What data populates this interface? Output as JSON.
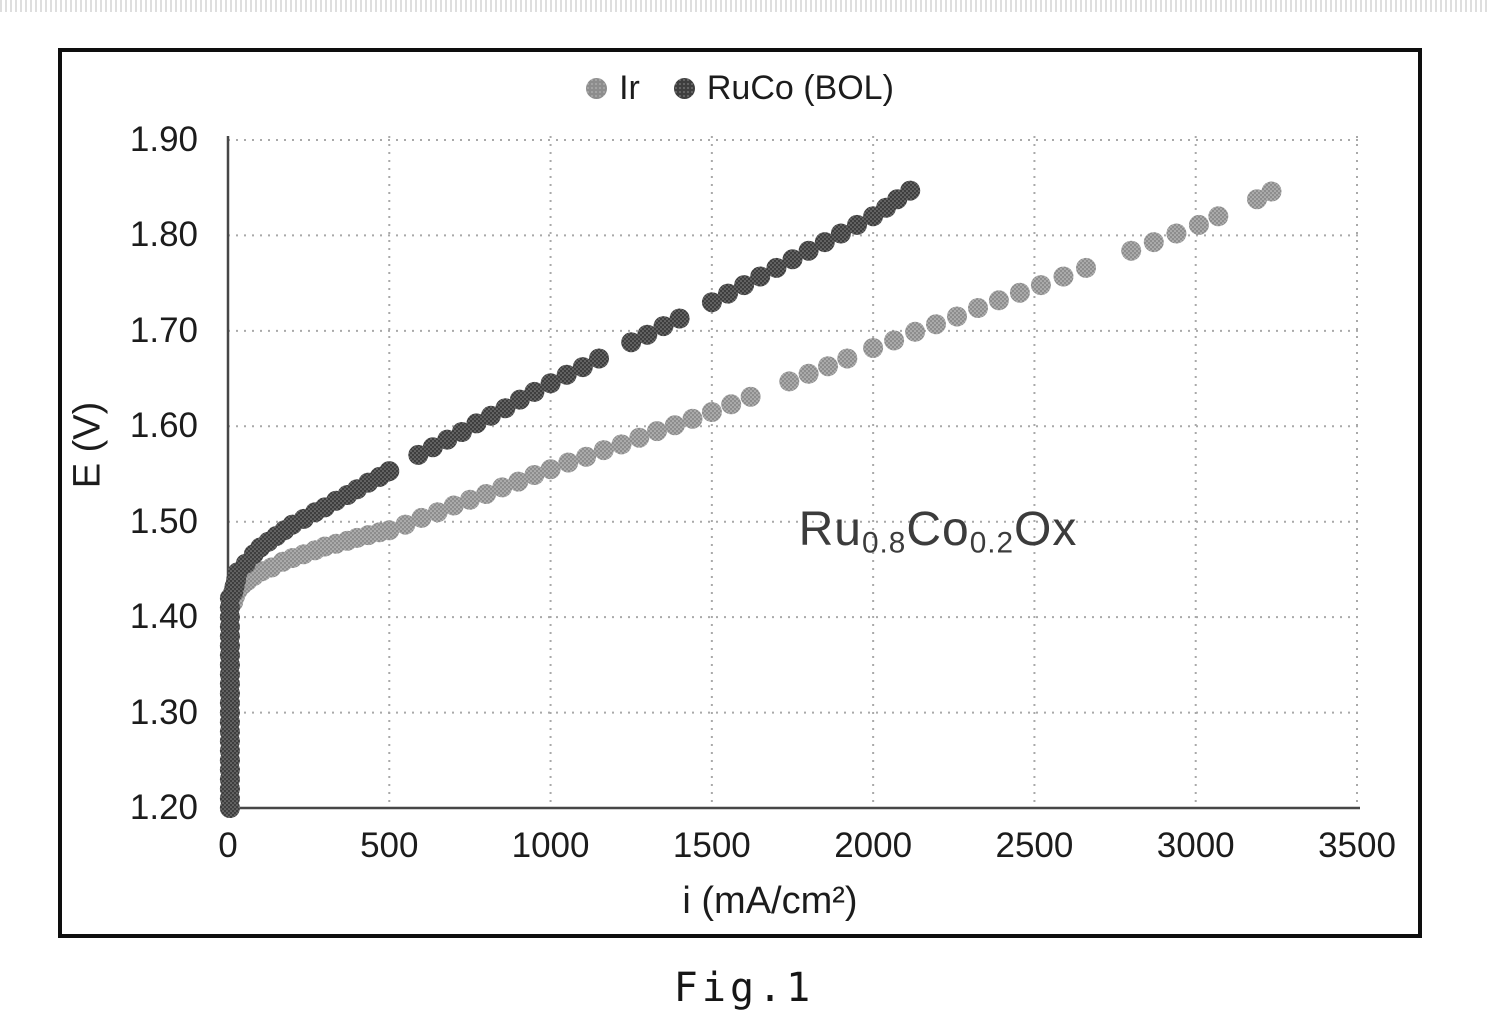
{
  "figure": {
    "caption": "Fig.1",
    "border_color": "#0e0e0e"
  },
  "chart_data": {
    "type": "scatter",
    "title": "",
    "xlabel": "i (mA/cm²)",
    "ylabel": "E (V)",
    "xlim": [
      0,
      3500
    ],
    "ylim": [
      1.2,
      1.9
    ],
    "grid": true,
    "colors": {
      "grid": "#a9a9a9",
      "axis": "#474747",
      "tick_text": "#1c1c1c"
    },
    "x_ticks": [
      {
        "label": "0",
        "value": 0
      },
      {
        "label": "500",
        "value": 500
      },
      {
        "label": "1000",
        "value": 1000
      },
      {
        "label": "1500",
        "value": 1500
      },
      {
        "label": "2000",
        "value": 2000
      },
      {
        "label": "2500",
        "value": 2500
      },
      {
        "label": "3000",
        "value": 3000
      },
      {
        "label": "3500",
        "value": 3500
      }
    ],
    "y_ticks": [
      {
        "label": "1.20",
        "value": 1.2
      },
      {
        "label": "1.30",
        "value": 1.3
      },
      {
        "label": "1.40",
        "value": 1.4
      },
      {
        "label": "1.50",
        "value": 1.5
      },
      {
        "label": "1.60",
        "value": 1.6
      },
      {
        "label": "1.70",
        "value": 1.7
      },
      {
        "label": "1.80",
        "value": 1.8
      },
      {
        "label": "1.90",
        "value": 1.9
      }
    ],
    "legend": {
      "position": "top-center",
      "entries": [
        {
          "label": "Ir",
          "color": "#8d8d8d"
        },
        {
          "label": "RuCo (BOL)",
          "color": "#3e3e3e"
        }
      ]
    },
    "annotation": {
      "plain": "Ru0.8Co0.2Ox",
      "color": "#3c3c3c",
      "parts": [
        {
          "text": "Ru",
          "sub": false
        },
        {
          "text": "0.8",
          "sub": true
        },
        {
          "text": "Co",
          "sub": false
        },
        {
          "text": "0.2",
          "sub": true
        },
        {
          "text": "Ox",
          "sub": false
        }
      ]
    },
    "series": [
      {
        "name": "Ir",
        "color": "#8d8d8d",
        "marker_radius": 10,
        "points": [
          [
            6,
            1.2
          ],
          [
            6,
            1.21
          ],
          [
            6,
            1.22
          ],
          [
            6,
            1.23
          ],
          [
            6,
            1.24
          ],
          [
            6,
            1.25
          ],
          [
            6,
            1.26
          ],
          [
            6,
            1.27
          ],
          [
            6,
            1.28
          ],
          [
            6,
            1.29
          ],
          [
            6,
            1.3
          ],
          [
            6,
            1.31
          ],
          [
            6,
            1.32
          ],
          [
            6,
            1.33
          ],
          [
            6,
            1.34
          ],
          [
            6,
            1.35
          ],
          [
            6,
            1.36
          ],
          [
            6,
            1.37
          ],
          [
            6,
            1.38
          ],
          [
            6,
            1.39
          ],
          [
            6,
            1.4
          ],
          [
            6,
            1.41
          ],
          [
            16,
            1.416
          ],
          [
            22,
            1.422
          ],
          [
            30,
            1.428
          ],
          [
            45,
            1.434
          ],
          [
            60,
            1.438
          ],
          [
            80,
            1.443
          ],
          [
            105,
            1.448
          ],
          [
            135,
            1.452
          ],
          [
            170,
            1.458
          ],
          [
            200,
            1.462
          ],
          [
            235,
            1.466
          ],
          [
            270,
            1.47
          ],
          [
            300,
            1.474
          ],
          [
            335,
            1.477
          ],
          [
            370,
            1.48
          ],
          [
            400,
            1.483
          ],
          [
            435,
            1.486
          ],
          [
            470,
            1.489
          ],
          [
            500,
            1.491
          ],
          [
            550,
            1.497
          ],
          [
            600,
            1.504
          ],
          [
            650,
            1.51
          ],
          [
            700,
            1.517
          ],
          [
            750,
            1.523
          ],
          [
            800,
            1.529
          ],
          [
            850,
            1.536
          ],
          [
            900,
            1.542
          ],
          [
            950,
            1.549
          ],
          [
            1000,
            1.555
          ],
          [
            1055,
            1.562
          ],
          [
            1110,
            1.568
          ],
          [
            1165,
            1.575
          ],
          [
            1220,
            1.581
          ],
          [
            1275,
            1.588
          ],
          [
            1330,
            1.595
          ],
          [
            1385,
            1.601
          ],
          [
            1440,
            1.608
          ],
          [
            1500,
            1.615
          ],
          [
            1560,
            1.623
          ],
          [
            1620,
            1.631
          ],
          [
            1740,
            1.647
          ],
          [
            1800,
            1.655
          ],
          [
            1860,
            1.663
          ],
          [
            1920,
            1.671
          ],
          [
            2000,
            1.682
          ],
          [
            2065,
            1.69
          ],
          [
            2130,
            1.699
          ],
          [
            2195,
            1.707
          ],
          [
            2260,
            1.715
          ],
          [
            2325,
            1.724
          ],
          [
            2390,
            1.732
          ],
          [
            2455,
            1.74
          ],
          [
            2520,
            1.748
          ],
          [
            2590,
            1.757
          ],
          [
            2660,
            1.766
          ],
          [
            2800,
            1.784
          ],
          [
            2870,
            1.793
          ],
          [
            2940,
            1.802
          ],
          [
            3010,
            1.811
          ],
          [
            3070,
            1.82
          ],
          [
            3190,
            1.838
          ],
          [
            3235,
            1.846
          ]
        ]
      },
      {
        "name": "RuCo (BOL)",
        "color": "#3e3e3e",
        "marker_radius": 10,
        "points": [
          [
            6,
            1.2
          ],
          [
            6,
            1.21
          ],
          [
            6,
            1.22
          ],
          [
            6,
            1.23
          ],
          [
            6,
            1.24
          ],
          [
            6,
            1.25
          ],
          [
            6,
            1.26
          ],
          [
            6,
            1.27
          ],
          [
            6,
            1.28
          ],
          [
            6,
            1.29
          ],
          [
            6,
            1.3
          ],
          [
            6,
            1.31
          ],
          [
            6,
            1.32
          ],
          [
            6,
            1.33
          ],
          [
            6,
            1.34
          ],
          [
            6,
            1.35
          ],
          [
            6,
            1.36
          ],
          [
            6,
            1.37
          ],
          [
            6,
            1.38
          ],
          [
            6,
            1.39
          ],
          [
            6,
            1.4
          ],
          [
            6,
            1.41
          ],
          [
            6,
            1.42
          ],
          [
            16,
            1.426
          ],
          [
            20,
            1.432
          ],
          [
            25,
            1.439
          ],
          [
            30,
            1.447
          ],
          [
            55,
            1.456
          ],
          [
            80,
            1.466
          ],
          [
            100,
            1.473
          ],
          [
            125,
            1.479
          ],
          [
            150,
            1.485
          ],
          [
            175,
            1.491
          ],
          [
            200,
            1.497
          ],
          [
            235,
            1.503
          ],
          [
            270,
            1.51
          ],
          [
            300,
            1.515
          ],
          [
            335,
            1.522
          ],
          [
            370,
            1.528
          ],
          [
            400,
            1.534
          ],
          [
            435,
            1.541
          ],
          [
            470,
            1.547
          ],
          [
            500,
            1.553
          ],
          [
            590,
            1.57
          ],
          [
            635,
            1.578
          ],
          [
            680,
            1.586
          ],
          [
            725,
            1.594
          ],
          [
            770,
            1.603
          ],
          [
            815,
            1.611
          ],
          [
            860,
            1.619
          ],
          [
            905,
            1.628
          ],
          [
            950,
            1.636
          ],
          [
            1000,
            1.645
          ],
          [
            1050,
            1.654
          ],
          [
            1100,
            1.662
          ],
          [
            1150,
            1.671
          ],
          [
            1250,
            1.688
          ],
          [
            1300,
            1.696
          ],
          [
            1350,
            1.705
          ],
          [
            1400,
            1.713
          ],
          [
            1500,
            1.73
          ],
          [
            1550,
            1.739
          ],
          [
            1600,
            1.748
          ],
          [
            1650,
            1.757
          ],
          [
            1700,
            1.766
          ],
          [
            1750,
            1.775
          ],
          [
            1800,
            1.784
          ],
          [
            1850,
            1.793
          ],
          [
            1900,
            1.802
          ],
          [
            1950,
            1.811
          ],
          [
            2000,
            1.82
          ],
          [
            2040,
            1.829
          ],
          [
            2075,
            1.838
          ],
          [
            2115,
            1.847
          ]
        ]
      }
    ]
  }
}
